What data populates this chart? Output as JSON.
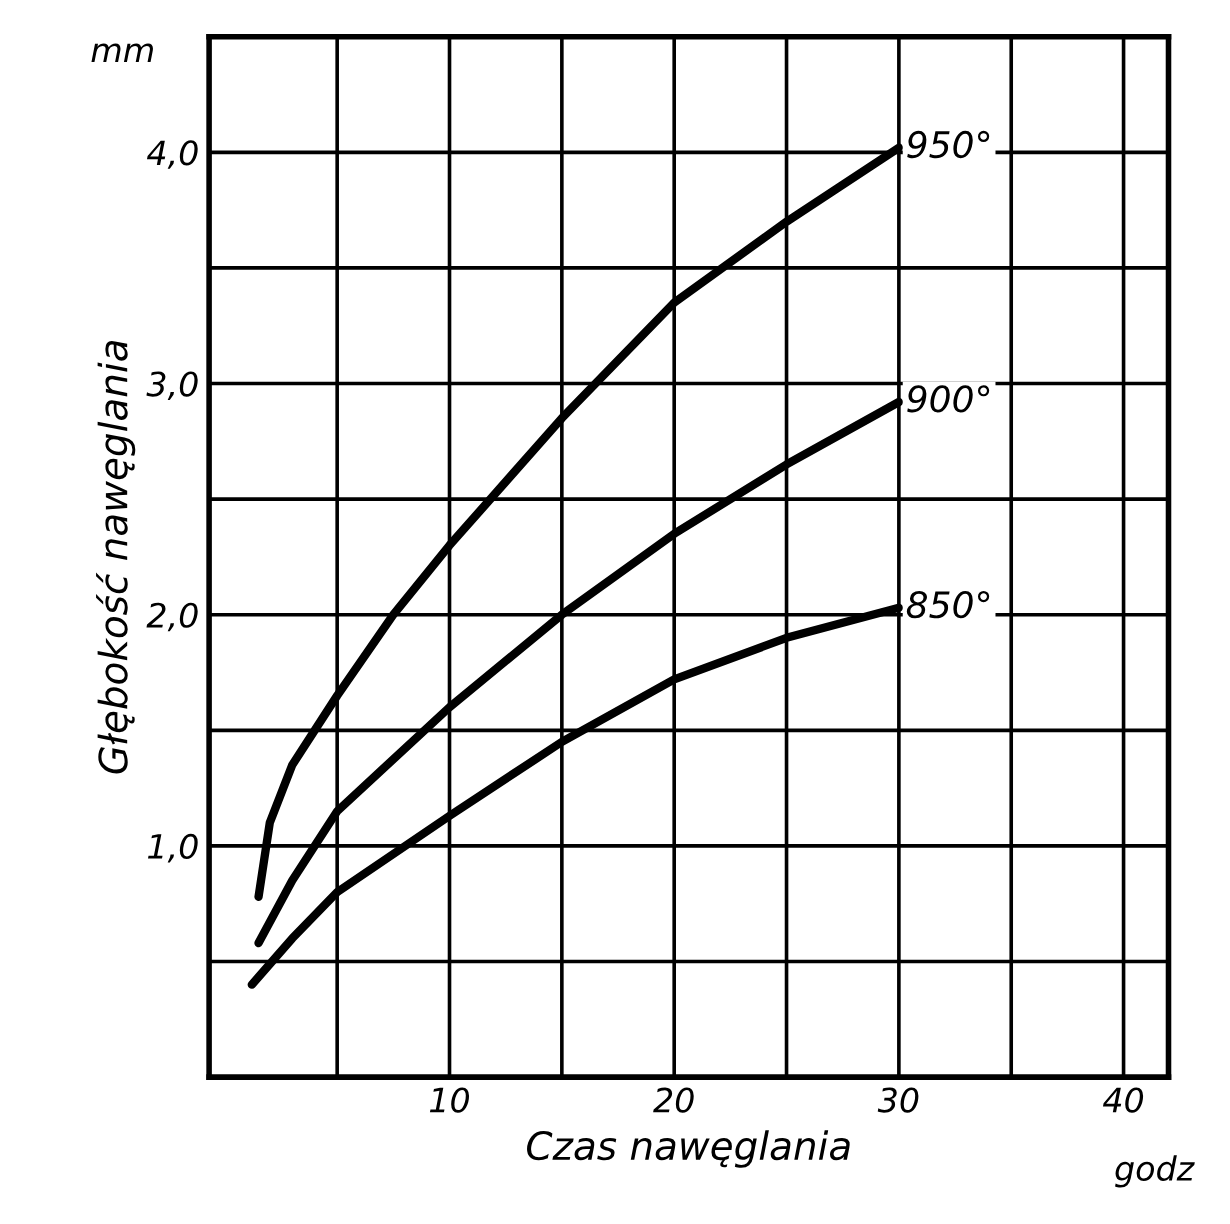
{
  "chart_data": {
    "type": "line",
    "xlabel": "Czas nawęglania",
    "ylabel": "Głębokość nawęglania",
    "annotations": [
      "mm",
      "godz"
    ],
    "xlim": [
      -0.7,
      42
    ],
    "ylim": [
      0,
      4.5
    ],
    "xticks": [
      {
        "value": 5,
        "label": null
      },
      10,
      {
        "value": 15,
        "label": null
      },
      20,
      {
        "value": 25,
        "label": null
      },
      30,
      {
        "value": 35,
        "label": null
      },
      40
    ],
    "yticks": [
      {
        "value": 0.5,
        "label": null
      },
      {
        "value": 1,
        "label": "1,0"
      },
      {
        "value": 1.5,
        "label": null
      },
      {
        "value": 2,
        "label": "2,0"
      },
      {
        "value": 2.5,
        "label": null
      },
      {
        "value": 3,
        "label": "3,0"
      },
      {
        "value": 3.5,
        "label": null
      },
      {
        "value": 4,
        "label": "4,0"
      }
    ],
    "grid": true,
    "legend": false,
    "marker": "none",
    "line_style": "solid",
    "series": [
      {
        "name": "950°",
        "color": "#000000",
        "x": [
          1.5,
          2,
          3,
          5,
          7.5,
          10,
          15,
          20,
          25,
          30
        ],
        "values": [
          0.78,
          1.1,
          1.35,
          1.65,
          2.0,
          2.3,
          2.85,
          3.35,
          3.7,
          4.02
        ]
      },
      {
        "name": "900°",
        "color": "#000000",
        "x": [
          1.5,
          3,
          5,
          10,
          15,
          20,
          25,
          30
        ],
        "values": [
          0.58,
          0.85,
          1.15,
          1.6,
          2.0,
          2.35,
          2.65,
          2.92
        ]
      },
      {
        "name": "850°",
        "color": "#000000",
        "x": [
          1.2,
          3,
          5,
          10,
          15,
          20,
          25,
          30
        ],
        "values": [
          0.4,
          0.6,
          0.8,
          1.13,
          1.45,
          1.72,
          1.9,
          2.03
        ]
      }
    ]
  }
}
